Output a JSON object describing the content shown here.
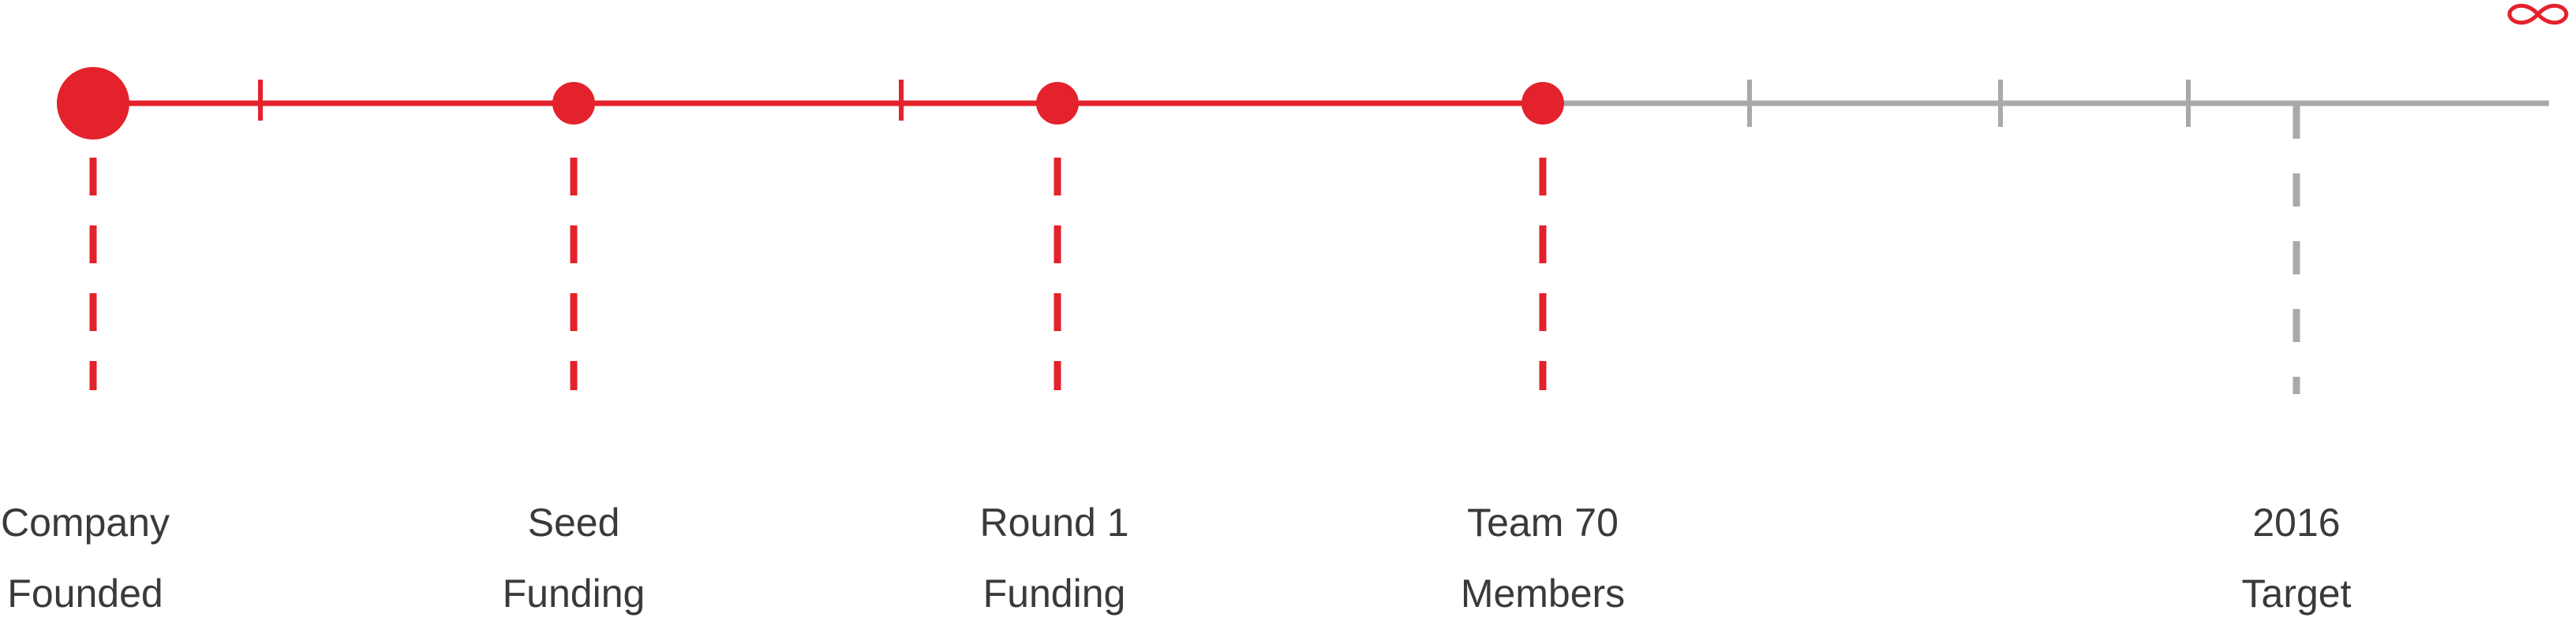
{
  "colors": {
    "accent": "#e3222b",
    "inactive": "#a9a9a9"
  },
  "end_icon": "infinity-icon",
  "milestones": [
    {
      "id": "company-founded",
      "line1": "Company",
      "line2": "Founded",
      "status": "done"
    },
    {
      "id": "seed-funding",
      "line1": "Seed",
      "line2": "Funding",
      "status": "done"
    },
    {
      "id": "round1-funding",
      "line1": "Round 1",
      "line2": "Funding",
      "status": "done"
    },
    {
      "id": "team70-members",
      "line1": "Team 70",
      "line2": "Members",
      "status": "done"
    },
    {
      "id": "target-2016",
      "line1": "2016",
      "line2": "Target",
      "status": "upcoming"
    }
  ]
}
